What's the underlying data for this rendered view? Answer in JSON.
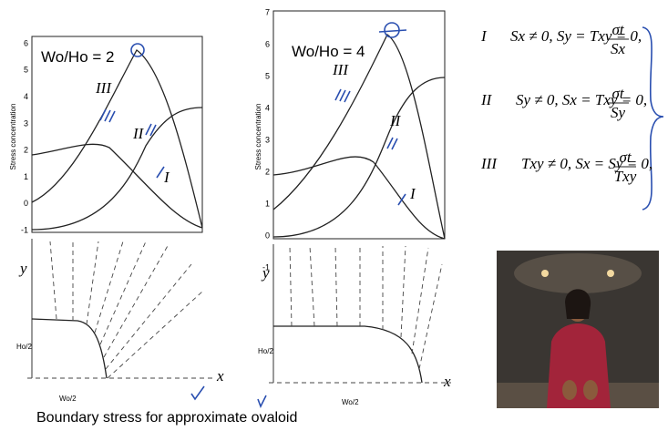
{
  "left_chart": {
    "ratio_label": "Wo/Ho = 2",
    "y_axis_title": "Stress concentration",
    "yticks": [
      6,
      5,
      4,
      3,
      2,
      1,
      0,
      -1
    ],
    "curve_labels": [
      "III",
      "II",
      "I"
    ],
    "diagram_labels": {
      "y": "y",
      "height": "Ho/2",
      "width": "Wo/2",
      "x": "x"
    }
  },
  "right_chart": {
    "ratio_label": "Wo/Ho = 4",
    "y_axis_title": "Stress concentration",
    "yticks": [
      7,
      6,
      5,
      4,
      3,
      2,
      1,
      0,
      -1
    ],
    "curve_labels": [
      "III",
      "II",
      "I"
    ],
    "diagram_labels": {
      "y": "y",
      "height": "Ho/2",
      "width": "Wo/2",
      "x": "x"
    }
  },
  "equations": [
    {
      "label": "I",
      "condition": "Sx ≠ 0, Sy = Txy = 0,",
      "numerator": "σt",
      "denominator": "Sx"
    },
    {
      "label": "II",
      "condition": "Sy ≠ 0, Sx = Txy = 0,",
      "numerator": "σt",
      "denominator": "Sy"
    },
    {
      "label": "III",
      "condition": "Txy ≠ 0, Sx = Sy = 0,",
      "numerator": "σt",
      "denominator": "Txy"
    }
  ],
  "caption": "Boundary stress for approximate ovaloid"
}
